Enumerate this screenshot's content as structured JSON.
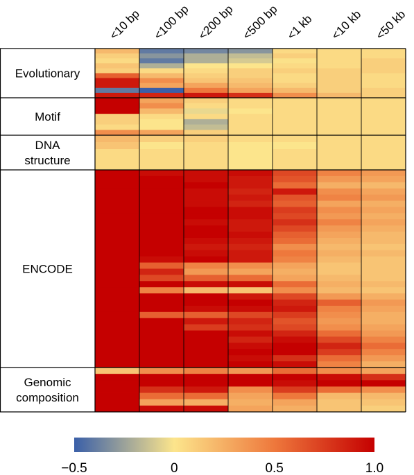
{
  "chart_data": {
    "type": "heatmap",
    "title": "",
    "xlabel": "",
    "ylabel": "",
    "columns": [
      "<10 bp",
      "<100 bp",
      "<200 bp",
      "<500 bp",
      "<1 kb",
      "<10 kb",
      "<50 kb"
    ],
    "groups": [
      {
        "label": "Evolutionary",
        "label_lines": [
          "Evolutionary"
        ],
        "rows": [
          [
            0.2,
            -0.4,
            -0.35,
            -0.3,
            0.05,
            0.05,
            0.05
          ],
          [
            0.1,
            -0.3,
            -0.2,
            -0.15,
            0.1,
            0.05,
            0.05
          ],
          [
            0.05,
            -0.4,
            -0.2,
            -0.1,
            0.02,
            0.05,
            0.1
          ],
          [
            0.15,
            -0.2,
            0.0,
            0.0,
            0.05,
            0.05,
            0.1
          ],
          [
            0.1,
            0.05,
            0.05,
            0.1,
            0.1,
            0.1,
            0.1
          ],
          [
            0.6,
            0.2,
            0.1,
            0.1,
            0.05,
            0.1,
            0.05
          ],
          [
            0.9,
            0.4,
            0.15,
            0.15,
            0.05,
            0.1,
            0.05
          ],
          [
            0.9,
            0.3,
            0.3,
            0.2,
            0.1,
            0.1,
            0.05
          ],
          [
            -0.4,
            -0.5,
            0.5,
            0.3,
            0.2,
            0.1,
            0.1
          ],
          [
            0.9,
            0.85,
            0.9,
            0.8,
            0.4,
            0.2,
            0.1
          ]
        ]
      },
      {
        "label": "Motif",
        "label_lines": [
          "Motif"
        ],
        "rows": [
          [
            1.0,
            0.3,
            0.1,
            0.05,
            0.05,
            0.05,
            0.05
          ],
          [
            1.0,
            0.4,
            0.05,
            0.05,
            0.05,
            0.05,
            0.05
          ],
          [
            1.0,
            0.2,
            -0.05,
            0.0,
            0.05,
            0.05,
            0.05
          ],
          [
            0.1,
            0.05,
            0.05,
            0.05,
            0.05,
            0.05,
            0.05
          ],
          [
            0.1,
            0.0,
            -0.2,
            0.05,
            0.05,
            0.05,
            0.05
          ],
          [
            0.05,
            0.0,
            -0.15,
            0.05,
            0.05,
            0.05,
            0.05
          ],
          [
            0.4,
            0.3,
            0.1,
            0.05,
            0.05,
            0.05,
            0.05
          ]
        ]
      },
      {
        "label": "DNA structure",
        "label_lines": [
          "DNA",
          "structure"
        ],
        "rows": [
          [
            0.2,
            0.1,
            0.1,
            0.05,
            0.05,
            0.05,
            0.05
          ],
          [
            0.15,
            0.0,
            0.05,
            0.0,
            0.0,
            0.05,
            0.05
          ],
          [
            0.05,
            0.05,
            0.05,
            0.0,
            0.05,
            0.05,
            0.05
          ],
          [
            0.05,
            0.05,
            0.05,
            0.0,
            0.05,
            0.05,
            0.05
          ],
          [
            0.05,
            0.05,
            0.05,
            0.0,
            0.05,
            0.05,
            0.05
          ]
        ]
      },
      {
        "label": "ENCODE",
        "label_lines": [
          "ENCODE"
        ],
        "rows": [
          [
            1.0,
            0.95,
            0.95,
            0.95,
            0.7,
            0.45,
            0.35
          ],
          [
            1.0,
            1.0,
            0.95,
            0.9,
            0.65,
            0.35,
            0.3
          ],
          [
            1.0,
            1.0,
            1.0,
            0.9,
            0.55,
            0.25,
            0.2
          ],
          [
            1.0,
            1.0,
            0.95,
            0.85,
            0.9,
            0.4,
            0.3
          ],
          [
            1.0,
            1.0,
            0.95,
            0.9,
            0.65,
            0.45,
            0.35
          ],
          [
            1.0,
            1.0,
            0.95,
            0.85,
            0.6,
            0.3,
            0.25
          ],
          [
            1.0,
            1.0,
            1.0,
            0.95,
            0.75,
            0.4,
            0.3
          ],
          [
            1.0,
            1.0,
            1.0,
            0.95,
            0.7,
            0.35,
            0.25
          ],
          [
            1.0,
            1.0,
            0.95,
            0.9,
            0.8,
            0.45,
            0.3
          ],
          [
            1.0,
            1.0,
            1.0,
            0.9,
            0.7,
            0.35,
            0.25
          ],
          [
            1.0,
            1.0,
            1.0,
            0.95,
            0.6,
            0.3,
            0.2
          ],
          [
            1.0,
            1.0,
            0.95,
            0.9,
            0.55,
            0.25,
            0.2
          ],
          [
            1.0,
            1.0,
            0.9,
            0.85,
            0.4,
            0.2,
            0.15
          ],
          [
            1.0,
            1.0,
            0.95,
            0.9,
            0.5,
            0.25,
            0.2
          ],
          [
            1.0,
            0.95,
            1.0,
            0.9,
            0.45,
            0.2,
            0.15
          ],
          [
            1.0,
            0.6,
            0.45,
            0.4,
            0.3,
            0.15,
            0.15
          ],
          [
            1.0,
            0.85,
            0.35,
            0.3,
            0.25,
            0.15,
            0.15
          ],
          [
            1.0,
            0.7,
            0.6,
            0.55,
            0.3,
            0.2,
            0.15
          ],
          [
            1.0,
            1.0,
            0.95,
            0.95,
            0.55,
            0.25,
            0.2
          ],
          [
            1.0,
            0.45,
            0.2,
            0.15,
            0.4,
            0.2,
            0.15
          ],
          [
            1.0,
            1.0,
            1.0,
            0.9,
            0.7,
            0.35,
            0.25
          ],
          [
            1.0,
            1.0,
            1.0,
            1.0,
            0.85,
            0.6,
            0.35
          ],
          [
            1.0,
            1.0,
            0.95,
            0.95,
            0.9,
            0.45,
            0.3
          ],
          [
            1.0,
            0.6,
            0.6,
            0.7,
            0.75,
            0.4,
            0.25
          ],
          [
            1.0,
            1.0,
            0.9,
            0.85,
            0.65,
            0.35,
            0.25
          ],
          [
            1.0,
            1.0,
            0.75,
            0.8,
            0.7,
            0.4,
            0.3
          ],
          [
            1.0,
            1.0,
            1.0,
            0.95,
            0.85,
            0.55,
            0.35
          ],
          [
            1.0,
            1.0,
            1.0,
            0.85,
            0.95,
            0.7,
            0.45
          ],
          [
            1.0,
            1.0,
            1.0,
            0.95,
            1.0,
            0.85,
            0.55
          ],
          [
            1.0,
            1.0,
            1.0,
            1.0,
            1.0,
            0.75,
            0.45
          ],
          [
            1.0,
            1.0,
            1.0,
            0.95,
            0.8,
            0.55,
            0.35
          ],
          [
            1.0,
            1.0,
            1.0,
            1.0,
            0.95,
            0.45,
            0.25
          ]
        ]
      },
      {
        "label": "Genomic composition",
        "label_lines": [
          "Genomic",
          "composition"
        ],
        "rows": [
          [
            0.15,
            0.4,
            0.45,
            0.35,
            0.55,
            0.4,
            0.3
          ],
          [
            1.0,
            1.0,
            1.0,
            1.0,
            1.0,
            0.95,
            0.8
          ],
          [
            1.0,
            1.0,
            1.0,
            1.0,
            0.95,
            1.0,
            1.0
          ],
          [
            1.0,
            0.8,
            0.9,
            0.4,
            0.75,
            0.55,
            0.4
          ],
          [
            1.0,
            0.55,
            0.55,
            0.3,
            0.5,
            0.2,
            0.2
          ],
          [
            1.0,
            0.3,
            0.25,
            0.25,
            0.3,
            0.15,
            0.15
          ],
          [
            1.0,
            0.95,
            0.95,
            0.3,
            0.25,
            0.15,
            0.1
          ]
        ]
      }
    ],
    "colorbar": {
      "min": -0.5,
      "max": 1.0,
      "tick_labels": [
        "−0.5",
        "0",
        "0.5",
        "1.0"
      ],
      "tick_values": [
        -0.5,
        0,
        0.5,
        1.0
      ],
      "colors": [
        "#3a5fa8",
        "#fce58c",
        "#c50000"
      ]
    },
    "legend_placement": "bottom",
    "grid": false
  }
}
